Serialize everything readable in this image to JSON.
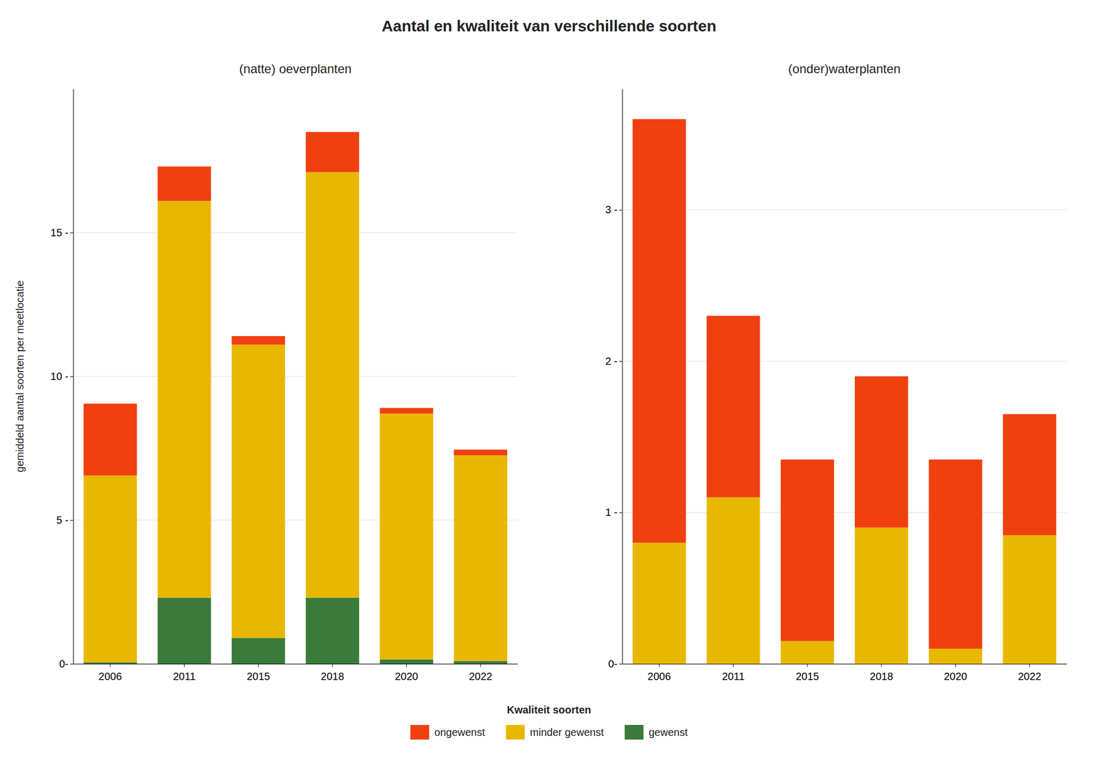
{
  "chart_data": [
    {
      "type": "bar",
      "title": "Aantal en kwaliteit van verschillende soorten",
      "subtitle": "(natte) oeverplanten",
      "ylabel": "gemiddeld aantal soorten per meetlocatie",
      "legend_title": "Kwaliteit soorten",
      "categories": [
        "2006",
        "2011",
        "2015",
        "2018",
        "2020",
        "2022"
      ],
      "series": [
        {
          "name": "gewenst",
          "color": "#3A7A3A",
          "values": [
            0.05,
            2.3,
            0.9,
            2.3,
            0.15,
            0.1
          ]
        },
        {
          "name": "minder gewenst",
          "color": "#E8B800",
          "values": [
            6.5,
            13.8,
            10.2,
            14.8,
            8.55,
            7.15
          ]
        },
        {
          "name": "ongewenst",
          "color": "#F04010",
          "values": [
            2.5,
            1.2,
            0.3,
            1.4,
            0.2,
            0.2
          ]
        }
      ],
      "ylim": [
        0,
        20
      ],
      "yticks": [
        {
          "value": 0,
          "label": "0-"
        },
        {
          "value": 5,
          "label": "5 -"
        },
        {
          "value": 10,
          "label": "10 -"
        },
        {
          "value": 15,
          "label": "15 -"
        }
      ],
      "stacked": true,
      "grid": true,
      "legend": "bottom"
    },
    {
      "type": "bar",
      "subtitle": "(onder)waterplanten",
      "categories": [
        "2006",
        "2011",
        "2015",
        "2018",
        "2020",
        "2022"
      ],
      "series": [
        {
          "name": "gewenst",
          "color": "#3A7A3A",
          "values": [
            0.0,
            0.0,
            0.0,
            0.0,
            0.0,
            0.0
          ]
        },
        {
          "name": "minder gewenst",
          "color": "#E8B800",
          "values": [
            0.8,
            1.1,
            0.15,
            0.9,
            0.1,
            0.85
          ]
        },
        {
          "name": "ongewenst",
          "color": "#F04010",
          "values": [
            2.8,
            1.2,
            1.2,
            1.0,
            1.25,
            0.8
          ]
        }
      ],
      "ylim": [
        0,
        3.8
      ],
      "yticks": [
        {
          "value": 0,
          "label": "0-"
        },
        {
          "value": 1,
          "label": "1 -"
        },
        {
          "value": 2,
          "label": "2 -"
        },
        {
          "value": 3,
          "label": "3 -"
        }
      ],
      "stacked": true,
      "grid": true
    }
  ]
}
